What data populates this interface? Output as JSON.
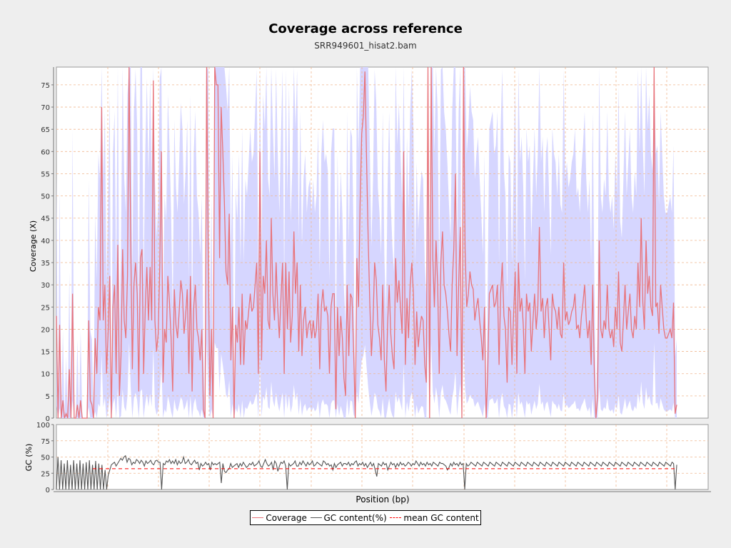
{
  "chart_data": {
    "type": "line",
    "title": "Coverage across reference",
    "subtitle": "SRR949601_hisat2.bam",
    "xlabel": "Position (bp)",
    "ylabel_top": "Coverage (X)",
    "ylabel_bottom": "GC (%)",
    "coverage_ylim": [
      0,
      79
    ],
    "coverage_ticks": [
      0,
      5,
      10,
      15,
      20,
      25,
      30,
      35,
      40,
      45,
      50,
      55,
      60,
      65,
      70,
      75
    ],
    "gc_ylim": [
      0,
      100
    ],
    "gc_ticks": [
      0,
      25,
      50,
      75,
      100
    ],
    "mean_gc": 32,
    "colors": {
      "coverage": "#e8737a",
      "gc": "#555555",
      "mean_gc": "#ff0000",
      "band": "#d6d6ff",
      "grid": "#f0b890"
    },
    "coverage": [
      23,
      0,
      21,
      0,
      4,
      0,
      1,
      0,
      11,
      0,
      28,
      0,
      0,
      3,
      0,
      4,
      0,
      0,
      0,
      0,
      22,
      4,
      3,
      0,
      18,
      10,
      25,
      22,
      70,
      22,
      30,
      10,
      19,
      32,
      0,
      25,
      30,
      10,
      39,
      5,
      14,
      38,
      22,
      18,
      32,
      80,
      40,
      11,
      30,
      35,
      28,
      6,
      36,
      38,
      10,
      25,
      34,
      22,
      34,
      22,
      76,
      22,
      15,
      19,
      34,
      60,
      8,
      20,
      17,
      32,
      26,
      18,
      6,
      29,
      21,
      18,
      24,
      31,
      28,
      19,
      23,
      29,
      10,
      32,
      6,
      25,
      30,
      20,
      18,
      13,
      20,
      2,
      0,
      80,
      35,
      5,
      20,
      0,
      80,
      75,
      75,
      36,
      70,
      60,
      48,
      33,
      30,
      46,
      13,
      25,
      0,
      21,
      17,
      25,
      12,
      28,
      12,
      22,
      20,
      24,
      28,
      24,
      25,
      30,
      35,
      10,
      60,
      13,
      32,
      28,
      40,
      22,
      20,
      45,
      28,
      22,
      35,
      25,
      18,
      27,
      35,
      10,
      35,
      20,
      33,
      17,
      23,
      42,
      28,
      35,
      15,
      30,
      14,
      22,
      25,
      18,
      21,
      22,
      18,
      22,
      18,
      20,
      28,
      11,
      25,
      29,
      24,
      25,
      23,
      10,
      25,
      28,
      28,
      2,
      25,
      14,
      23,
      18,
      9,
      5,
      30,
      14,
      28,
      27,
      15,
      0,
      36,
      25,
      48,
      64,
      68,
      78,
      58,
      40,
      26,
      14,
      22,
      35,
      31,
      21,
      18,
      13,
      30,
      13,
      6,
      21,
      30,
      19,
      14,
      11,
      36,
      26,
      31,
      25,
      19,
      60,
      12,
      27,
      18,
      30,
      35,
      28,
      12,
      24,
      16,
      20,
      23,
      22,
      12,
      8,
      80,
      0,
      80,
      36,
      25,
      40,
      30,
      10,
      35,
      42,
      30,
      28,
      24,
      19,
      15,
      30,
      38,
      55,
      14,
      30,
      43,
      0,
      80,
      38,
      25,
      28,
      33,
      30,
      29,
      22,
      25,
      27,
      22,
      18,
      13,
      25,
      0,
      10,
      28,
      29,
      30,
      25,
      26,
      30,
      12,
      28,
      35,
      23,
      20,
      8,
      25,
      24,
      12,
      23,
      33,
      10,
      35,
      24,
      27,
      21,
      10,
      28,
      24,
      26,
      15,
      22,
      28,
      20,
      25,
      43,
      24,
      27,
      18,
      25,
      27,
      20,
      13,
      28,
      25,
      24,
      20,
      25,
      19,
      18,
      35,
      22,
      24,
      21,
      22,
      24,
      25,
      28,
      20,
      21,
      18,
      23,
      26,
      30,
      22,
      18,
      22,
      12,
      30,
      10,
      0,
      5,
      40,
      20,
      18,
      22,
      20,
      30,
      20,
      18,
      20,
      16,
      25,
      20,
      33,
      17,
      15,
      22,
      30,
      20,
      24,
      28,
      20,
      18,
      23,
      20,
      35,
      25,
      45,
      26,
      20,
      40,
      28,
      32,
      25,
      23,
      80,
      25,
      26,
      19,
      30,
      25,
      20,
      18,
      18,
      19,
      20,
      18,
      26,
      1,
      3
    ],
    "gc": [
      0,
      50,
      0,
      45,
      0,
      40,
      0,
      45,
      0,
      38,
      0,
      45,
      0,
      40,
      0,
      45,
      0,
      40,
      0,
      42,
      0,
      45,
      0,
      38,
      0,
      44,
      0,
      40,
      0,
      38,
      0,
      30,
      0,
      22,
      30,
      38,
      40,
      42,
      36,
      40,
      44,
      48,
      45,
      50,
      52,
      42,
      48,
      46,
      38,
      42,
      40,
      46,
      44,
      40,
      45,
      42,
      36,
      44,
      40,
      42,
      45,
      40,
      38,
      44,
      45,
      42,
      42,
      0,
      40,
      38,
      44,
      42,
      46,
      40,
      44,
      40,
      46,
      38,
      44,
      40,
      42,
      50,
      40,
      42,
      46,
      40,
      38,
      42,
      45,
      40,
      42,
      30,
      40,
      36,
      38,
      42,
      38,
      40,
      30,
      42,
      38,
      40,
      38,
      40,
      42,
      10,
      40,
      28,
      26,
      30,
      32,
      40,
      34,
      36,
      38,
      40,
      34,
      40,
      36,
      42,
      38,
      34,
      36,
      40,
      38,
      42,
      36,
      38,
      40,
      44,
      36,
      34,
      40,
      46,
      40,
      36,
      38,
      42,
      30,
      44,
      40,
      28,
      36,
      42,
      40,
      44,
      36,
      0,
      40,
      36,
      38,
      40,
      44,
      36,
      36,
      42,
      38,
      44,
      40,
      36,
      42,
      38,
      40,
      44,
      36,
      38,
      42,
      40,
      38,
      36,
      44,
      42,
      38,
      40,
      36,
      38,
      30,
      40,
      34,
      38,
      40,
      42,
      36,
      40,
      40,
      38,
      42,
      36,
      40,
      38,
      42,
      44,
      36,
      40,
      38,
      42,
      36,
      40,
      34,
      38,
      42,
      36,
      40,
      30,
      20,
      40,
      38,
      36,
      42,
      38,
      40,
      30,
      36,
      42,
      38,
      40,
      34,
      40,
      36,
      42,
      38,
      40,
      36,
      38,
      42,
      40,
      36,
      40,
      38,
      44,
      40,
      36,
      42,
      38,
      40,
      36,
      42,
      38,
      40,
      36,
      42,
      40,
      38,
      36,
      42,
      40,
      40,
      38,
      36,
      30,
      34,
      40,
      36,
      42,
      38,
      40,
      36,
      42,
      38,
      40,
      0,
      40,
      36,
      38,
      42,
      40,
      38,
      36,
      42,
      40,
      38,
      36,
      42,
      40,
      38,
      36,
      42,
      40,
      38,
      36,
      42,
      40,
      38,
      36,
      42,
      40,
      38,
      36,
      42,
      40,
      38,
      36,
      42,
      40,
      38,
      36,
      42,
      40,
      38,
      36,
      42,
      40,
      38,
      36,
      42,
      40,
      38,
      36,
      42,
      40,
      38,
      36,
      42,
      40,
      38,
      36,
      42,
      40,
      38,
      36,
      42,
      40,
      38,
      36,
      42,
      40,
      38,
      36,
      42,
      40,
      38,
      36,
      42,
      40,
      38,
      36,
      42,
      40,
      38,
      36,
      42,
      40,
      38,
      36,
      42,
      40,
      38,
      36,
      42,
      40,
      38,
      36,
      42,
      40,
      38,
      36,
      42,
      40,
      38,
      36,
      42,
      40,
      38,
      36,
      42,
      40,
      38,
      36,
      42,
      40,
      38,
      36,
      42,
      40,
      38,
      36,
      42,
      40,
      38,
      36,
      42,
      40,
      38,
      36,
      42,
      40,
      38,
      36,
      42,
      40,
      38,
      36,
      42,
      40,
      0,
      38
    ],
    "legend": [
      "Coverage",
      "GC content(%)",
      "mean GC content"
    ]
  }
}
